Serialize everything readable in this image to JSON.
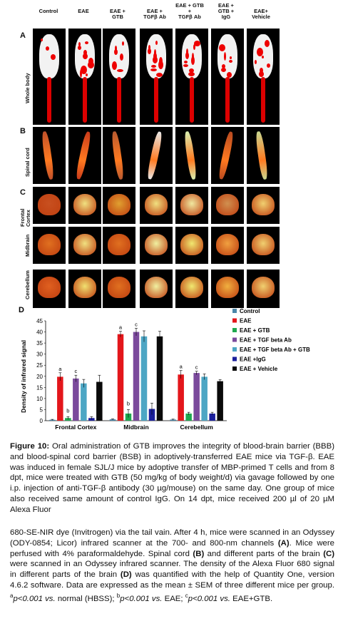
{
  "figure_a": {
    "panel_a": "A",
    "panel_b": "B",
    "panel_c": "C",
    "col_heads": [
      "Control",
      "EAE",
      "EAE +\nGTB",
      "EAE +\nTGFβ Ab",
      "EAE + GTB\n+\nTGFβ Ab",
      "EAE +\nGTB +\nIgG",
      "EAE+\nVehicle"
    ],
    "row_whole": "Whole body",
    "row_spinal": "Spinal cord",
    "row_frontal": "Frontal\nCortex",
    "row_midbrain": "Midbrain",
    "row_cerebellum": "Cerebellum"
  },
  "chart_data": {
    "type": "bar",
    "panel": "D",
    "ylabel": "Density of infrared signal",
    "ylim": [
      0,
      45
    ],
    "yticks": [
      0,
      5,
      10,
      15,
      20,
      25,
      30,
      35,
      40,
      45
    ],
    "categories": [
      "Frontal Cortex",
      "Midbrain",
      "Cerebellum"
    ],
    "series": [
      {
        "name": "Control",
        "color": "#4a86a8",
        "values": [
          0.4,
          0.6,
          0.5
        ],
        "errors": [
          0.2,
          0.2,
          0.2
        ],
        "labels": [
          "",
          "",
          ""
        ]
      },
      {
        "name": "EAE",
        "color": "#e3161b",
        "values": [
          19.8,
          39,
          20.8
        ],
        "errors": [
          1.8,
          1.3,
          1.8
        ],
        "labels": [
          "a",
          "a",
          "a"
        ]
      },
      {
        "name": "EAE + GTB",
        "color": "#1fa84f",
        "values": [
          1.2,
          3.2,
          3.2
        ],
        "errors": [
          0.6,
          1.8,
          0.6
        ],
        "labels": [
          "b",
          "b",
          ""
        ]
      },
      {
        "name": "EAE + TGF beta Ab",
        "color": "#7b4a9c",
        "values": [
          19,
          40,
          21.5
        ],
        "errors": [
          1.5,
          1.7,
          0.8
        ],
        "labels": [
          "c",
          "c",
          "c"
        ]
      },
      {
        "name": "EAE + TGF beta Ab + GTB",
        "color": "#4da6c4",
        "values": [
          16.8,
          38,
          19.8
        ],
        "errors": [
          1.8,
          2.5,
          1.3
        ],
        "labels": [
          "",
          "",
          ""
        ]
      },
      {
        "name": "EAE +IgG",
        "color": "#1b1f9c",
        "values": [
          1.2,
          5.3,
          3.2
        ],
        "errors": [
          0.6,
          2.6,
          0.6
        ],
        "labels": [
          "",
          "",
          ""
        ]
      },
      {
        "name": "EAE  + Vehicle",
        "color": "#0a0a0a",
        "values": [
          17.5,
          38,
          17.8
        ],
        "errors": [
          3,
          2.3,
          0.7
        ],
        "labels": [
          "",
          "",
          ""
        ]
      }
    ],
    "legend_position": "top-right"
  },
  "caption": {
    "fig_label": "Figure 10:",
    "p1": " Oral administration of GTB improves the integrity of blood-brain barrier (BBB) and blood-spinal cord barrier (BSB) in adoptively-transferred EAE mice via TGF-β. EAE was induced in female SJL/J mice by adoptive transfer of MBP-primed T cells and from 8 dpt, mice were treated with GTB (50 mg/kg of body weight/d) via gavage followed by one i.p. injection of anti-TGF-β antibody (30 µg/mouse) on the same day. One group of mice also received same amount of control IgG. On 14 dpt, mice received 200 µl of 20 µM Alexa Fluor",
    "p2a": "680-SE-NIR dye (Invitrogen) via the tail vain. After 4 h, mice were scanned in an Odyssey (ODY-0854; Licor) infrared scanner at the 700- and 800-nm channels ",
    "p2_a": "(A)",
    "p2b": ". Mice were perfused with 4% paraformaldehyde. Spinal cord ",
    "p2_b": "(B)",
    "p2c": " and different parts of the brain ",
    "p2_c": "(C)",
    "p2d": " were scanned in an Odyssey infrared scanner. The density of the Alexa Fluor 680 signal in different parts of the brain ",
    "p2_d": "(D)",
    "p2e": " was quantified with the help of Quantity One, version 4.6.2 software. Data are expressed as the mean ± SEM of three different mice per group. ",
    "sup_a": "a",
    "p2f": "p<0.001 ",
    "vs1": "vs.",
    "p2g": " normal (HBSS); ",
    "sup_b": "b",
    "p2h": "p<0.001 ",
    "vs2": "vs.",
    "p2i": " EAE; ",
    "sup_c": "c",
    "p2j": "p<0.001 ",
    "vs3": "vs.",
    "p2k": " EAE+GTB."
  }
}
